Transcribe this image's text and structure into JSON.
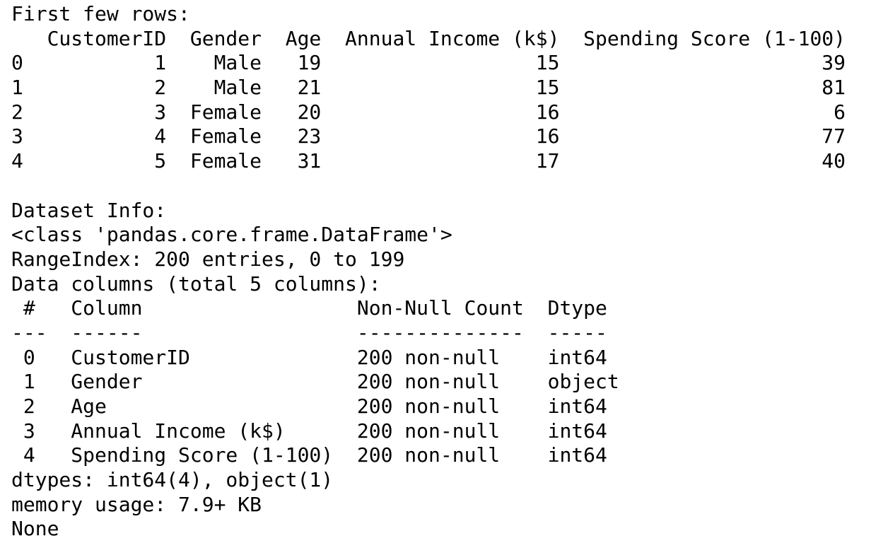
{
  "output": {
    "head_title": "First few rows:",
    "head_table": {
      "header": "   CustomerID  Gender  Age  Annual Income (k$)  Spending Score (1-100)",
      "rows": [
        "0           1    Male   19                  15                      39",
        "1           2    Male   21                  15                      81",
        "2           3  Female   20                  16                       6",
        "3           4  Female   23                  16                      77",
        "4           5  Female   31                  17                      40"
      ]
    },
    "info_title": "Dataset Info:",
    "class_line": "<class 'pandas.core.frame.DataFrame'>",
    "range_index": "RangeIndex: 200 entries, 0 to 199",
    "columns_summary": "Data columns (total 5 columns):",
    "info_table": {
      "header": " #   Column                  Non-Null Count  Dtype ",
      "separator": "---  ------                  --------------  ----- ",
      "rows": [
        " 0   CustomerID              200 non-null    int64 ",
        " 1   Gender                  200 non-null    object",
        " 2   Age                     200 non-null    int64 ",
        " 3   Annual Income (k$)      200 non-null    int64 ",
        " 4   Spending Score (1-100)  200 non-null    int64 "
      ]
    },
    "dtypes_line": "dtypes: int64(4), object(1)",
    "memory_line": "memory usage: 7.9+ KB",
    "return_value": "None"
  }
}
